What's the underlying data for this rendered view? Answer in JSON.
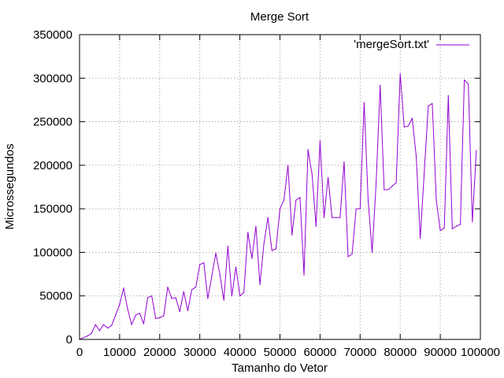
{
  "chart_data": {
    "type": "line",
    "title": "Merge Sort",
    "xlabel": "Tamanho do Vetor",
    "ylabel": "Microssegundos",
    "xlim": [
      0,
      100000
    ],
    "ylim": [
      0,
      350000
    ],
    "xticks": [
      0,
      10000,
      20000,
      30000,
      40000,
      50000,
      60000,
      70000,
      80000,
      90000,
      100000
    ],
    "yticks": [
      0,
      50000,
      100000,
      150000,
      200000,
      250000,
      300000,
      350000
    ],
    "grid": true,
    "legend_position": "top-right",
    "series": [
      {
        "name": "'mergeSort.txt'",
        "color": "#9400d3",
        "x": [
          0,
          1000,
          2000,
          3000,
          4000,
          5000,
          6000,
          7000,
          8000,
          9000,
          10000,
          11000,
          12000,
          13000,
          14000,
          15000,
          16000,
          17000,
          18000,
          19000,
          20000,
          21000,
          22000,
          23000,
          24000,
          25000,
          26000,
          27000,
          28000,
          29000,
          30000,
          31000,
          32000,
          33000,
          34000,
          35000,
          36000,
          37000,
          38000,
          39000,
          40000,
          41000,
          42000,
          43000,
          44000,
          45000,
          46000,
          47000,
          48000,
          49000,
          50000,
          51000,
          52000,
          53000,
          54000,
          55000,
          56000,
          57000,
          58000,
          59000,
          60000,
          61000,
          62000,
          63000,
          64000,
          65000,
          66000,
          67000,
          68000,
          69000,
          70000,
          71000,
          72000,
          73000,
          74000,
          75000,
          76000,
          77000,
          78000,
          79000,
          80000,
          81000,
          82000,
          83000,
          84000,
          85000,
          86000,
          87000,
          88000,
          89000,
          90000,
          91000,
          92000,
          93000,
          94000,
          95000,
          96000,
          97000,
          98000,
          99000
        ],
        "y": [
          0,
          2000,
          4000,
          7000,
          17000,
          10000,
          17000,
          13000,
          16000,
          28000,
          40000,
          59000,
          35000,
          17000,
          28000,
          30000,
          18000,
          48000,
          50000,
          24000,
          25000,
          27000,
          60000,
          47000,
          48000,
          32000,
          55000,
          33000,
          57000,
          60000,
          86000,
          88000,
          47000,
          73000,
          99000,
          75000,
          45000,
          107000,
          50000,
          83000,
          50000,
          54000,
          123000,
          93000,
          130000,
          63000,
          110000,
          140000,
          102000,
          104000,
          150000,
          160000,
          200000,
          120000,
          160000,
          163000,
          74000,
          218000,
          190000,
          130000,
          228000,
          140000,
          186000,
          140000,
          140000,
          140000,
          204000,
          95000,
          98000,
          150000,
          150000,
          272000,
          160000,
          100000,
          180000,
          292000,
          172000,
          172000,
          176000,
          180000,
          305000,
          244000,
          245000,
          254000,
          210000,
          116000,
          192000,
          268000,
          271000,
          160000,
          125000,
          128000,
          280000,
          127000,
          130000,
          132000,
          298000,
          293000,
          135000,
          217000
        ]
      }
    ]
  }
}
